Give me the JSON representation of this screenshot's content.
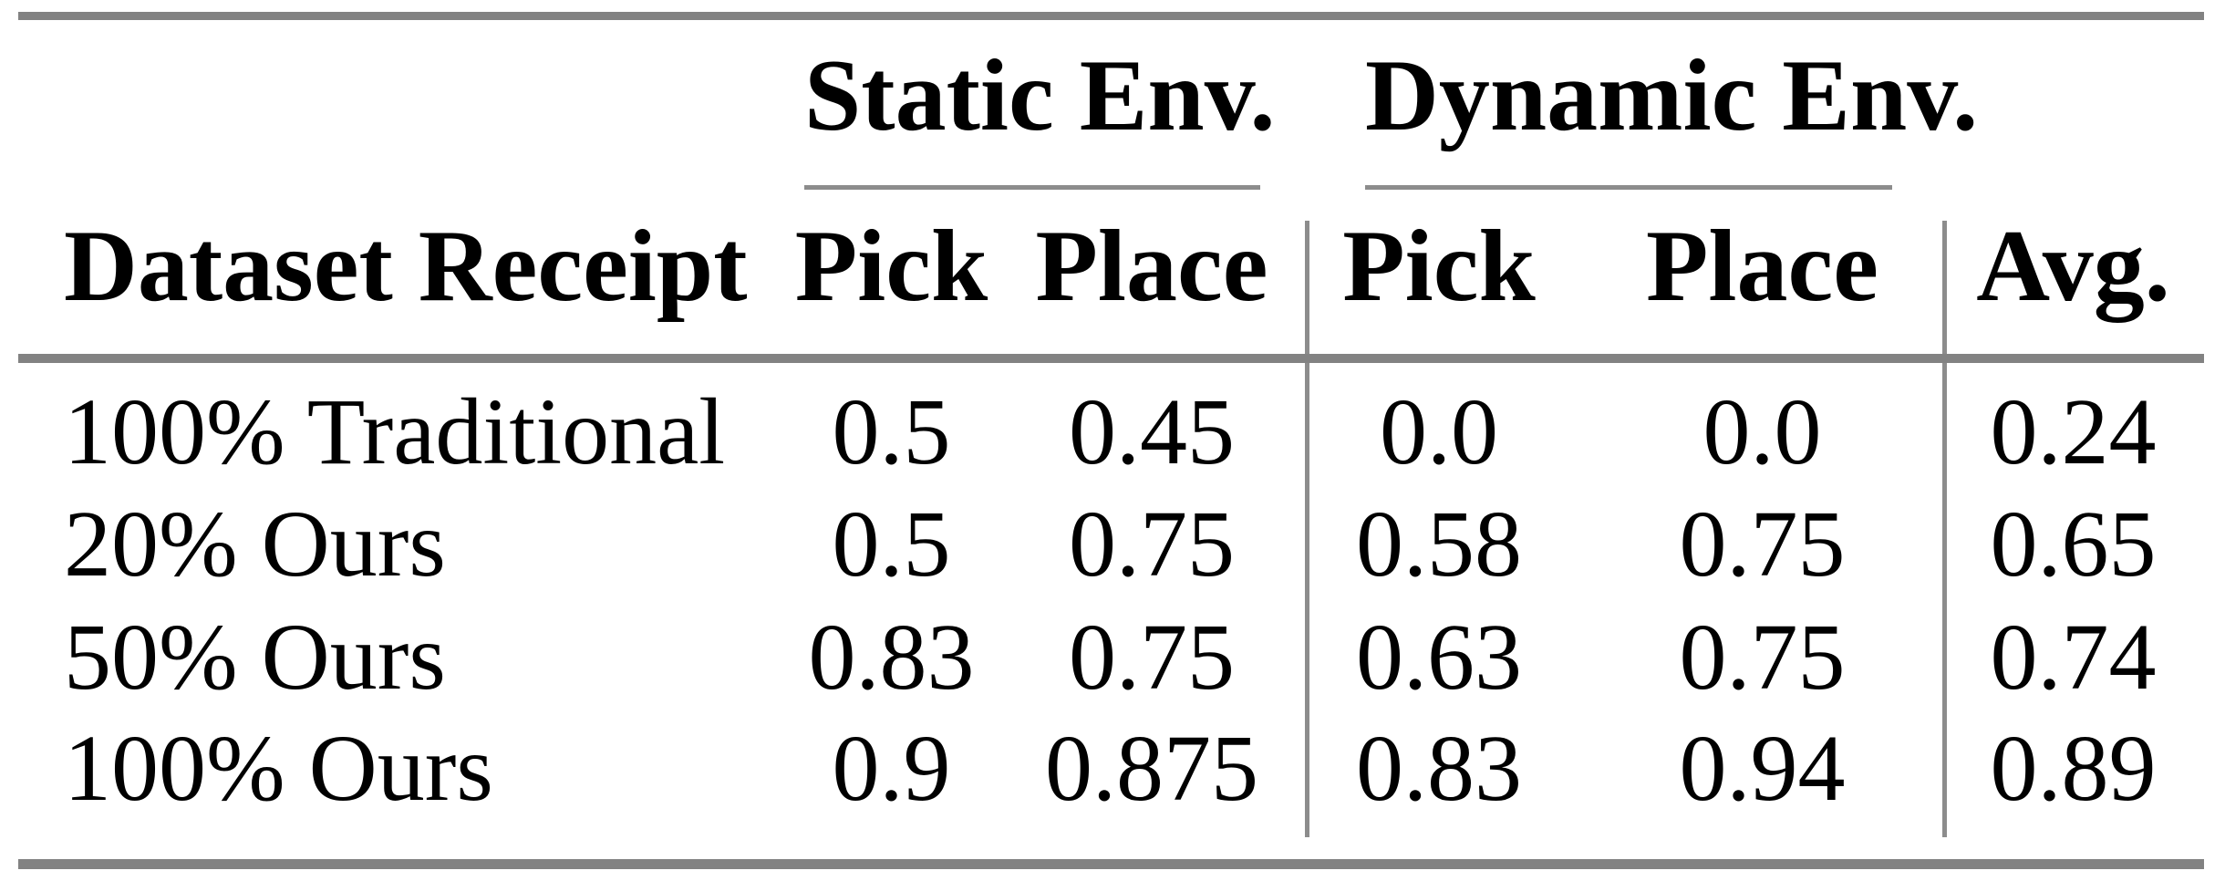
{
  "table": {
    "groups": [
      {
        "label": "Static Env."
      },
      {
        "label": "Dynamic Env."
      }
    ],
    "columns": [
      "Dataset Receipt",
      "Pick",
      "Place",
      "Pick",
      "Place",
      "Avg."
    ],
    "rows": [
      {
        "label": "100% Traditional",
        "values": [
          "0.5",
          "0.45",
          "0.0",
          "0.0",
          "0.24"
        ]
      },
      {
        "label": "20% Ours",
        "values": [
          "0.5",
          "0.75",
          "0.58",
          "0.75",
          "0.65"
        ]
      },
      {
        "label": "50% Ours",
        "values": [
          "0.83",
          "0.75",
          "0.63",
          "0.75",
          "0.74"
        ]
      },
      {
        "label": "100% Ours",
        "values": [
          "0.9",
          "0.875",
          "0.83",
          "0.94",
          "0.89"
        ]
      }
    ],
    "colors": {
      "rule": "#828282",
      "cmidrule": "#8c8c8c",
      "separator": "#8c8c8c",
      "text": "#000000",
      "background": "#ffffff"
    }
  }
}
